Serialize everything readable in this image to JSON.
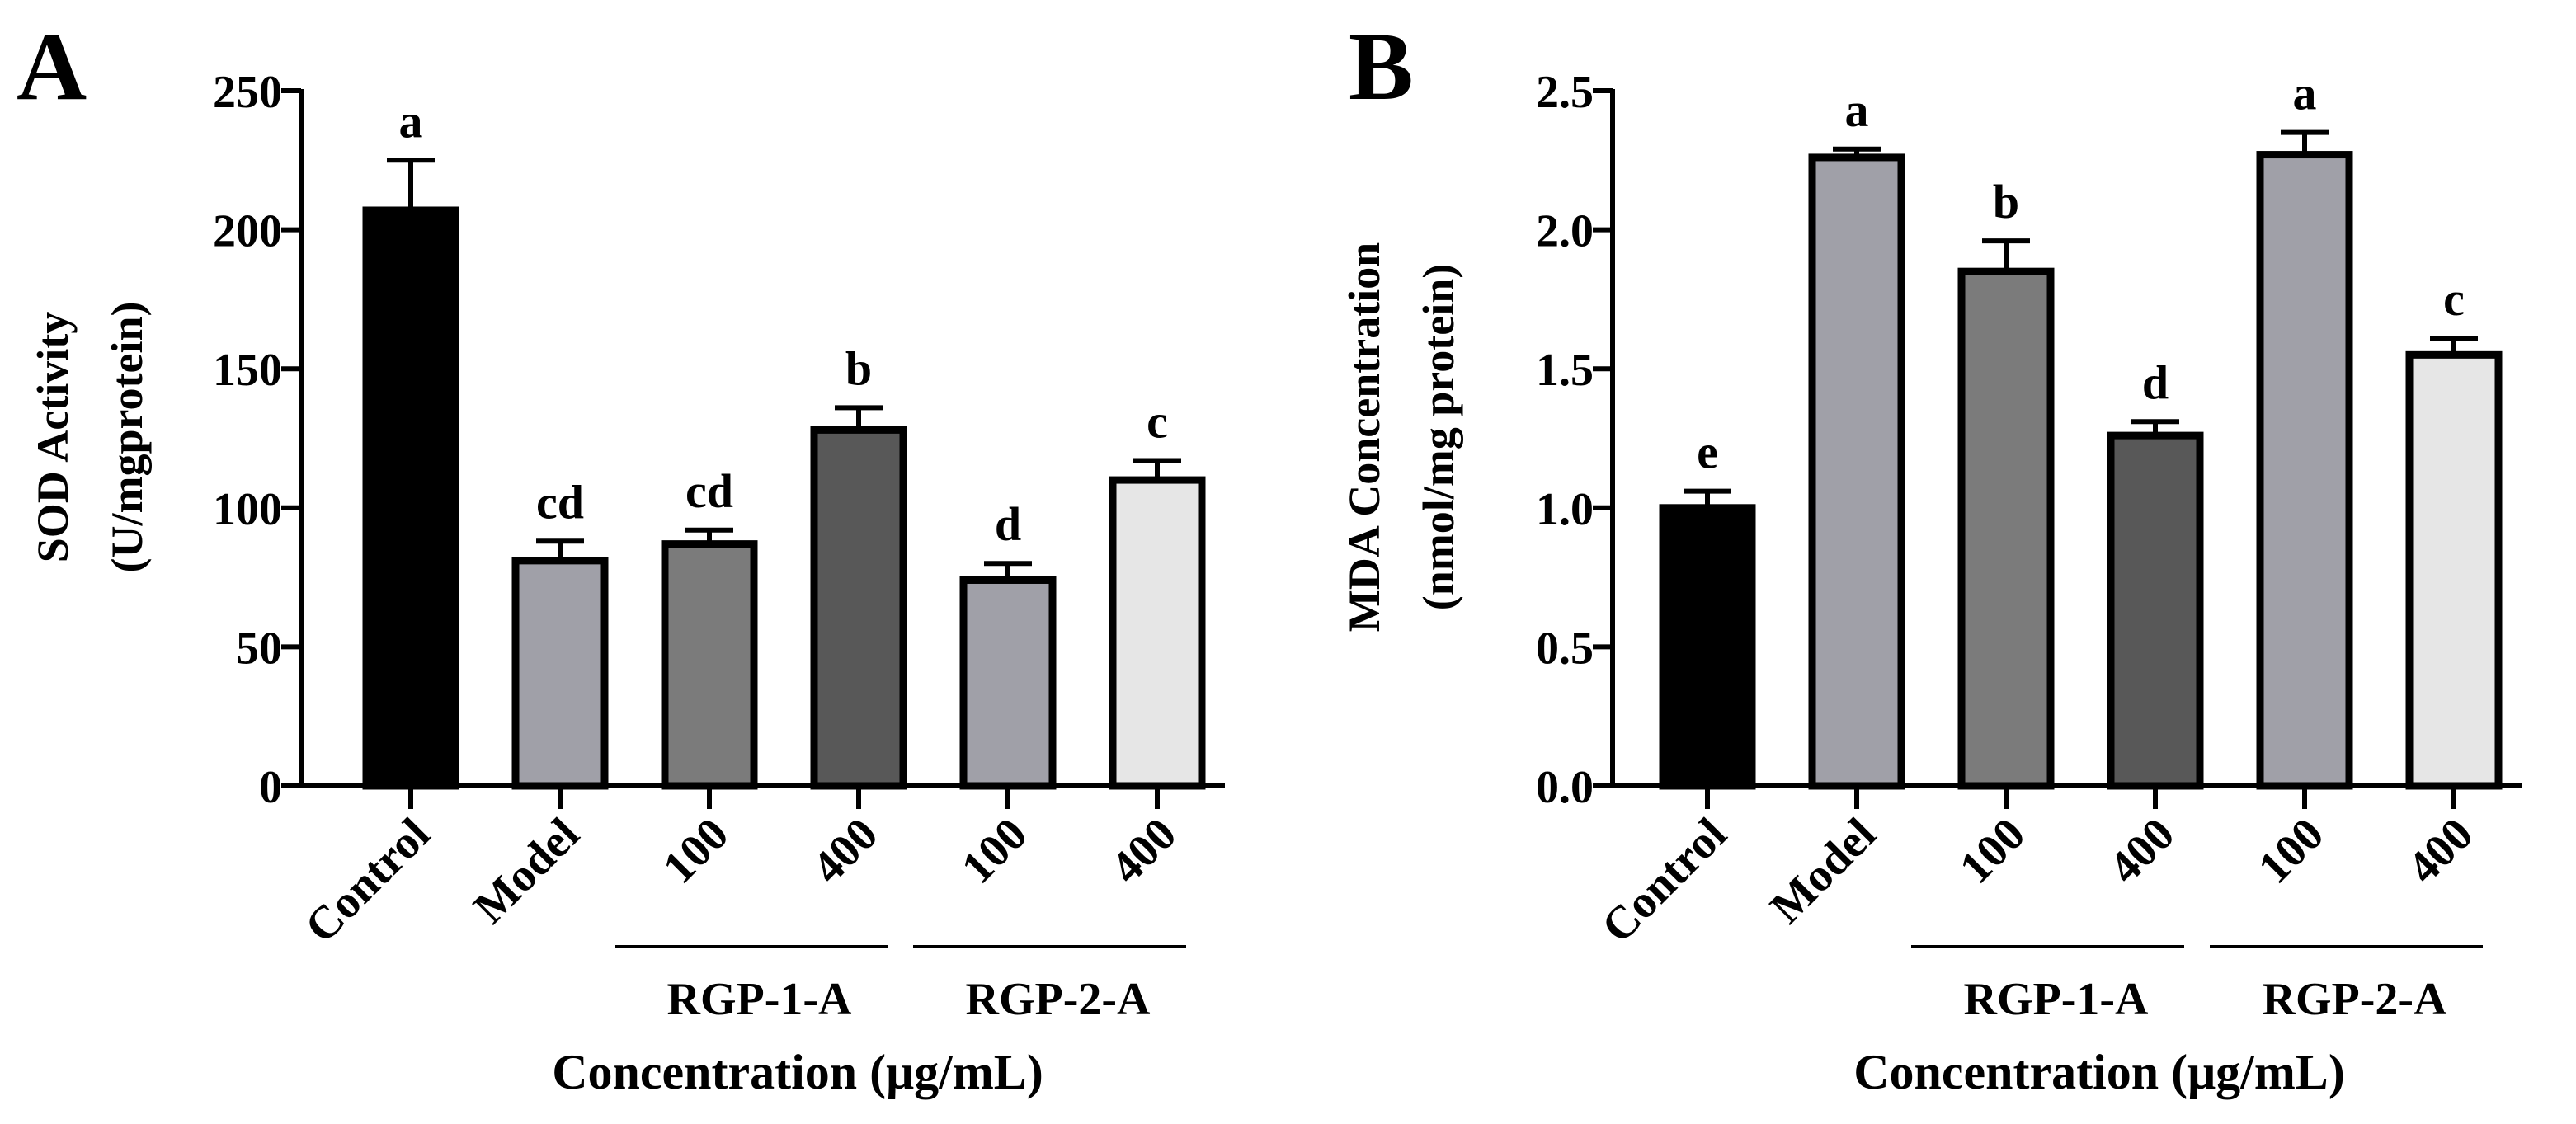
{
  "chart_data": [
    {
      "type": "bar",
      "panel_label": "A",
      "categories": [
        "Control",
        "Model",
        "100",
        "400",
        "100",
        "400"
      ],
      "values": [
        207,
        81,
        87,
        128,
        74,
        110
      ],
      "errors": [
        18,
        7,
        5,
        8,
        6,
        7
      ],
      "significance": [
        "a",
        "cd",
        "cd",
        "b",
        "d",
        "c"
      ],
      "bar_colors": [
        "#000000",
        "#a0a0a8",
        "#7b7b7b",
        "#585858",
        "#a0a0a8",
        "#e6e6e6"
      ],
      "ylabel": "SOD Activity",
      "ylabel_unit": "(U/mgprotein)",
      "xlabel": "Concentration (μg/mL)",
      "groups": [
        {
          "label": "RGP-1-A",
          "start": 2,
          "end": 3
        },
        {
          "label": "RGP-2-A",
          "start": 4,
          "end": 5
        }
      ],
      "ylim": [
        0,
        250
      ],
      "yticks": [
        0,
        50,
        100,
        150,
        200,
        250
      ],
      "ytick_labels": [
        "0",
        "50",
        "100",
        "150",
        "200",
        "250"
      ]
    },
    {
      "type": "bar",
      "panel_label": "B",
      "categories": [
        "Control",
        "Model",
        "100",
        "400",
        "100",
        "400"
      ],
      "values": [
        1.0,
        2.26,
        1.85,
        1.26,
        2.27,
        1.55
      ],
      "errors": [
        0.06,
        0.03,
        0.11,
        0.05,
        0.08,
        0.06
      ],
      "significance": [
        "e",
        "a",
        "b",
        "d",
        "a",
        "c"
      ],
      "bar_colors": [
        "#000000",
        "#a0a0a8",
        "#7b7b7b",
        "#585858",
        "#a0a0a8",
        "#e6e6e6"
      ],
      "ylabel": "MDA Concentration",
      "ylabel_unit": "(nmol/mg protein)",
      "xlabel": "Concentration (μg/mL)",
      "groups": [
        {
          "label": "RGP-1-A",
          "start": 2,
          "end": 3
        },
        {
          "label": "RGP-2-A",
          "start": 4,
          "end": 5
        }
      ],
      "ylim": [
        0,
        2.5
      ],
      "yticks": [
        0,
        0.5,
        1.0,
        1.5,
        2.0,
        2.5
      ],
      "ytick_labels": [
        "0.0",
        "0.5",
        "1.0",
        "1.5",
        "2.0",
        "2.5"
      ]
    }
  ]
}
